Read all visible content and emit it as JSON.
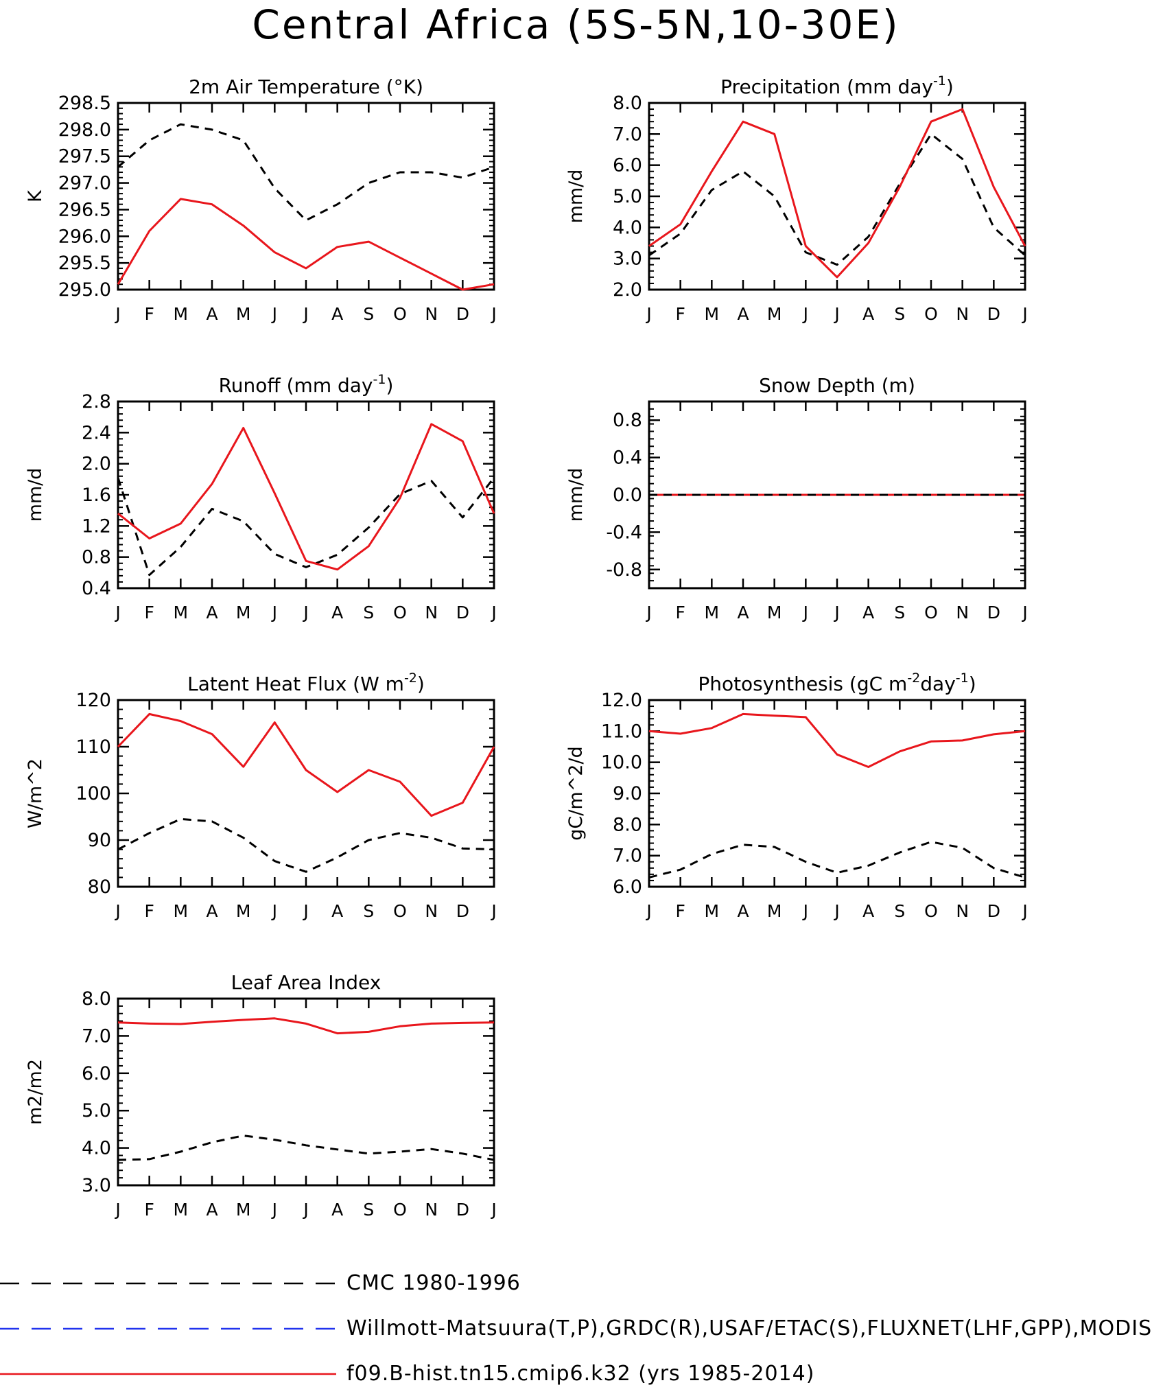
{
  "figure_title": "Central Africa (5S-5N,10-30E)",
  "month_labels": [
    "J",
    "F",
    "M",
    "A",
    "M",
    "J",
    "J",
    "A",
    "S",
    "O",
    "N",
    "D",
    "J"
  ],
  "colors": {
    "obs": "#000000",
    "model": "#e8161c",
    "obs_blue": "#2133ee"
  },
  "legend": [
    {
      "label": "CMC 1980-1996",
      "color": "#000000",
      "style": "dashed"
    },
    {
      "label": "Willmott-Matsuura(T,P),GRDC(R),USAF/ETAC(S),FLUXNET(LHF,GPP),MODIS(L",
      "color": "#2133ee",
      "style": "dashed"
    },
    {
      "label": "f09.B-hist.tn15.cmip6.k32 (yrs 1985-2014)",
      "color": "#e8161c",
      "style": "solid"
    }
  ],
  "chart_data": [
    {
      "type": "line",
      "title": "2m Air Temperature (°K)",
      "ylabel": "K",
      "ylim": [
        295.0,
        298.5
      ],
      "yticks": [
        "295.0",
        "295.5",
        "296.0",
        "296.5",
        "297.0",
        "297.5",
        "298.0",
        "298.5"
      ],
      "x": [
        "J",
        "F",
        "M",
        "A",
        "M",
        "J",
        "J",
        "A",
        "S",
        "O",
        "N",
        "D",
        "J"
      ],
      "series": [
        {
          "role": "obs",
          "values": [
            297.3,
            297.8,
            298.1,
            298.0,
            297.8,
            296.9,
            296.3,
            296.6,
            297.0,
            297.2,
            297.2,
            297.1,
            297.3
          ]
        },
        {
          "role": "model",
          "values": [
            295.1,
            296.1,
            296.7,
            296.6,
            296.2,
            295.7,
            295.4,
            295.8,
            295.9,
            295.6,
            295.3,
            295.0,
            295.1
          ]
        }
      ]
    },
    {
      "type": "line",
      "title": "Precipitation (mm day-1)",
      "ylabel": "mm/d",
      "ylim": [
        2.0,
        8.0
      ],
      "yticks": [
        "2.0",
        "3.0",
        "4.0",
        "5.0",
        "6.0",
        "7.0",
        "8.0"
      ],
      "x": [
        "J",
        "F",
        "M",
        "A",
        "M",
        "J",
        "J",
        "A",
        "S",
        "O",
        "N",
        "D",
        "J"
      ],
      "series": [
        {
          "role": "obs",
          "values": [
            3.1,
            3.8,
            5.2,
            5.8,
            5.0,
            3.2,
            2.8,
            3.7,
            5.4,
            7.0,
            6.2,
            4.0,
            3.1
          ]
        },
        {
          "role": "model",
          "values": [
            3.4,
            4.1,
            5.8,
            7.4,
            7.0,
            3.4,
            2.4,
            3.5,
            5.3,
            7.4,
            7.8,
            5.3,
            3.4
          ]
        }
      ]
    },
    {
      "type": "line",
      "title": "Runoff (mm day-1)",
      "ylabel": "mm/d",
      "ylim": [
        0.4,
        2.8
      ],
      "yticks": [
        "0.4",
        "0.8",
        "1.2",
        "1.6",
        "2.0",
        "2.4",
        "2.8"
      ],
      "x": [
        "J",
        "F",
        "M",
        "A",
        "M",
        "J",
        "J",
        "A",
        "S",
        "O",
        "N",
        "D",
        "J"
      ],
      "series": [
        {
          "role": "obs",
          "values": [
            1.82,
            0.57,
            0.93,
            1.42,
            1.26,
            0.84,
            0.67,
            0.83,
            1.18,
            1.61,
            1.78,
            1.31,
            1.82
          ]
        },
        {
          "role": "model",
          "values": [
            1.36,
            1.04,
            1.23,
            1.74,
            2.46,
            1.62,
            0.75,
            0.64,
            0.94,
            1.56,
            2.51,
            2.29,
            1.36
          ]
        }
      ]
    },
    {
      "type": "line",
      "title": "Snow Depth (m)",
      "ylabel": "mm/d",
      "ylim": [
        -1.0,
        1.0
      ],
      "yticks": [
        "-0.8",
        "-0.4",
        "0.0",
        "0.4",
        "0.8"
      ],
      "x": [
        "J",
        "F",
        "M",
        "A",
        "M",
        "J",
        "J",
        "A",
        "S",
        "O",
        "N",
        "D",
        "J"
      ],
      "series": [
        {
          "role": "model",
          "values": [
            0,
            0,
            0,
            0,
            0,
            0,
            0,
            0,
            0,
            0,
            0,
            0,
            0
          ]
        },
        {
          "role": "obs",
          "values": [
            0,
            0,
            0,
            0,
            0,
            0,
            0,
            0,
            0,
            0,
            0,
            0,
            0
          ]
        }
      ]
    },
    {
      "type": "line",
      "title": "Latent Heat Flux (W m-2)",
      "ylabel": "W/m^2",
      "ylim": [
        80,
        120
      ],
      "yticks": [
        "80",
        "90",
        "100",
        "110",
        "120"
      ],
      "x": [
        "J",
        "F",
        "M",
        "A",
        "M",
        "J",
        "J",
        "A",
        "S",
        "O",
        "N",
        "D",
        "J"
      ],
      "series": [
        {
          "role": "obs",
          "values": [
            88,
            91.5,
            94.5,
            94,
            90.5,
            85.5,
            83.2,
            86.3,
            90,
            91.5,
            90.5,
            88.2,
            88
          ]
        },
        {
          "role": "model",
          "values": [
            110,
            117,
            115.5,
            112.7,
            105.7,
            115.2,
            105,
            100.3,
            105,
            102.5,
            95.2,
            98,
            110
          ]
        }
      ]
    },
    {
      "type": "line",
      "title": "Photosynthesis (gC m-2day-1)",
      "ylabel": "gC/m^2/d",
      "ylim": [
        6.0,
        12.0
      ],
      "yticks": [
        "6.0",
        "7.0",
        "8.0",
        "9.0",
        "10.0",
        "11.0",
        "12.0"
      ],
      "x": [
        "J",
        "F",
        "M",
        "A",
        "M",
        "J",
        "J",
        "A",
        "S",
        "O",
        "N",
        "D",
        "J"
      ],
      "series": [
        {
          "role": "obs",
          "values": [
            6.3,
            6.55,
            7.05,
            7.35,
            7.28,
            6.8,
            6.45,
            6.68,
            7.1,
            7.44,
            7.25,
            6.6,
            6.3
          ]
        },
        {
          "role": "model",
          "values": [
            11.0,
            10.92,
            11.1,
            11.55,
            11.5,
            11.45,
            10.25,
            9.85,
            10.35,
            10.67,
            10.7,
            10.9,
            11.0
          ]
        }
      ]
    },
    {
      "type": "line",
      "title": "Leaf Area Index",
      "ylabel": "m2/m2",
      "ylim": [
        3.0,
        8.0
      ],
      "yticks": [
        "3.0",
        "4.0",
        "5.0",
        "6.0",
        "7.0",
        "8.0"
      ],
      "x": [
        "J",
        "F",
        "M",
        "A",
        "M",
        "J",
        "J",
        "A",
        "S",
        "O",
        "N",
        "D",
        "J"
      ],
      "series": [
        {
          "role": "obs",
          "values": [
            3.68,
            3.7,
            3.9,
            4.15,
            4.33,
            4.22,
            4.07,
            3.96,
            3.85,
            3.9,
            3.97,
            3.85,
            3.68
          ]
        },
        {
          "role": "model",
          "values": [
            7.36,
            7.33,
            7.32,
            7.38,
            7.43,
            7.47,
            7.33,
            7.07,
            7.11,
            7.26,
            7.33,
            7.35,
            7.36
          ]
        }
      ]
    }
  ]
}
